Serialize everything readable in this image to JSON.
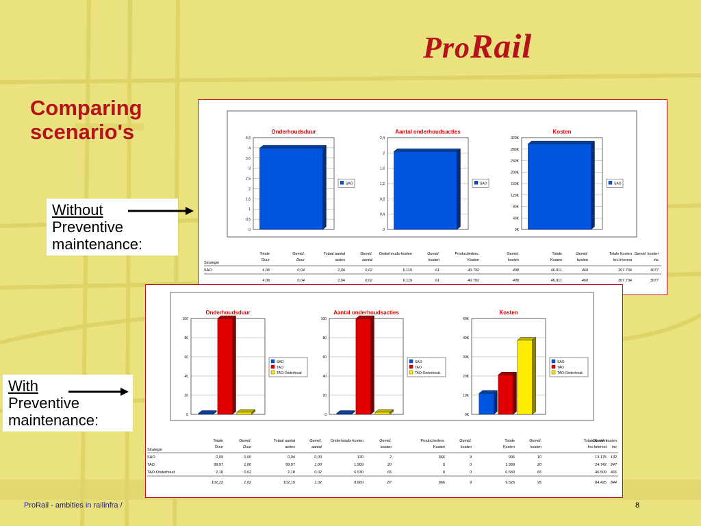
{
  "brand": {
    "logo_pro": "Pro",
    "logo_rail": "Rail"
  },
  "slide": {
    "title_line1": "Comparing",
    "title_line2": "scenario's"
  },
  "labels": {
    "without_word": "Without",
    "without_rest1": "Preventive",
    "without_rest2": "maintenance:",
    "with_word": "With",
    "with_rest1": "Preventive",
    "with_rest2": "maintenance:"
  },
  "footer": {
    "text": "ProRail - ambities in railinfra /",
    "page": "8"
  },
  "colors": {
    "accent": "#b5121b",
    "background": "#e9e27e",
    "sao": "#0055e0",
    "tao": "#e00000",
    "tao_onderhoud": "#ffee00"
  },
  "chart_data": [
    {
      "type": "bar",
      "title": "Onderhoudsduur",
      "categories": [
        "SAO"
      ],
      "series": [
        {
          "name": "SAO",
          "values": [
            4.08
          ]
        }
      ],
      "ylim": [
        0,
        4.6
      ],
      "yticks": [
        "4,6",
        "4",
        "3,6",
        "3",
        "2,5",
        "2",
        "1,6",
        "1",
        "0,5",
        "0"
      ]
    },
    {
      "type": "bar",
      "title": "Aantal onderhoudsacties",
      "categories": [
        "SAO"
      ],
      "series": [
        {
          "name": "SAO",
          "values": [
            2.04
          ]
        }
      ],
      "ylim": [
        0,
        2.4
      ],
      "yticks": [
        "2,4",
        "2",
        "1,6",
        "1,2",
        "0,8",
        "0,4",
        "0"
      ]
    },
    {
      "type": "bar",
      "title": "Kosten",
      "categories": [
        "SAO"
      ],
      "series": [
        {
          "name": "SAO",
          "values": [
            307704
          ]
        }
      ],
      "ylim": [
        0,
        330000
      ],
      "yticks": [
        "320K",
        "280K",
        "240K",
        "200K",
        "160K",
        "120K",
        "80K",
        "40K",
        "0K"
      ]
    },
    {
      "type": "bar",
      "title": "Onderhoudsduur",
      "series": [
        {
          "name": "SAO",
          "values": [
            0.09
          ]
        },
        {
          "name": "TAO",
          "values": [
            99.97
          ]
        },
        {
          "name": "TAO-Onderhoud",
          "values": [
            2.18
          ]
        }
      ],
      "ylim": [
        0,
        100
      ],
      "yticks": [
        "100",
        "80",
        "60",
        "40",
        "20",
        "0"
      ]
    },
    {
      "type": "bar",
      "title": "Aantal onderhoudsacties",
      "series": [
        {
          "name": "SAO",
          "values": [
            0.04
          ]
        },
        {
          "name": "TAO",
          "values": [
            99.97
          ]
        },
        {
          "name": "TAO-Onderhoud",
          "values": [
            2.18
          ]
        }
      ],
      "ylim": [
        0,
        100
      ],
      "yticks": [
        "100",
        "80",
        "60",
        "40",
        "20",
        "0"
      ]
    },
    {
      "type": "bar",
      "title": "Kosten",
      "series": [
        {
          "name": "SAO",
          "values": [
            13175
          ]
        },
        {
          "name": "TAO",
          "values": [
            24742
          ]
        },
        {
          "name": "TAO-Onderhoud",
          "values": [
            46509
          ]
        }
      ],
      "ylim": [
        0,
        60000
      ],
      "yticks": [
        "60K",
        "40K",
        "30K",
        "20K",
        "10K",
        "0K"
      ]
    }
  ],
  "tables": {
    "headers": [
      "Strategie",
      "Totale Duur",
      "Gemid. Duur",
      "Totaal aantal acties",
      "Gemid. aantal",
      "Onderhouds-kosten",
      "Gemid. kosten",
      "Productieders. Kosten",
      "Gemid. kosten",
      "Totale Kosten",
      "Gemid. kosten",
      "Totale Kosten Inc.Interest",
      "Gemid. kosten inc"
    ],
    "table1": {
      "rows": [
        [
          "SAO",
          "4,08",
          "0,04",
          "2,04",
          "0,02",
          "6.119",
          "61",
          "40.792",
          "408",
          "46.911",
          "469",
          "307.704",
          "3077"
        ]
      ],
      "total": [
        "",
        "4,08",
        "0,04",
        "2,04",
        "0,02",
        "6.119",
        "61",
        "40.792",
        "408",
        "46.911",
        "469",
        "307.704",
        "3077"
      ]
    },
    "table2": {
      "rows": [
        [
          "SAO",
          "0,09",
          "0,00",
          "0,04",
          "0,00",
          "130",
          "2",
          "866",
          "9",
          "996",
          "10",
          "13.175",
          "132"
        ],
        [
          "TAO",
          "99,97",
          "1,00",
          "99,97",
          "1,00",
          "1.999",
          "20",
          "0",
          "0",
          "1.999",
          "20",
          "24.742",
          "247"
        ],
        [
          "TAO-Onderhoud",
          "2,18",
          "0,02",
          "2,18",
          "0,02",
          "6.530",
          "65",
          "0",
          "0",
          "6.530",
          "65",
          "46.509",
          "465"
        ]
      ],
      "total": [
        "",
        "102,23",
        "1,02",
        "102,19",
        "1,02",
        "8.660",
        "87",
        "866",
        "9",
        "9.526",
        "95",
        "84.425",
        "844"
      ]
    }
  }
}
